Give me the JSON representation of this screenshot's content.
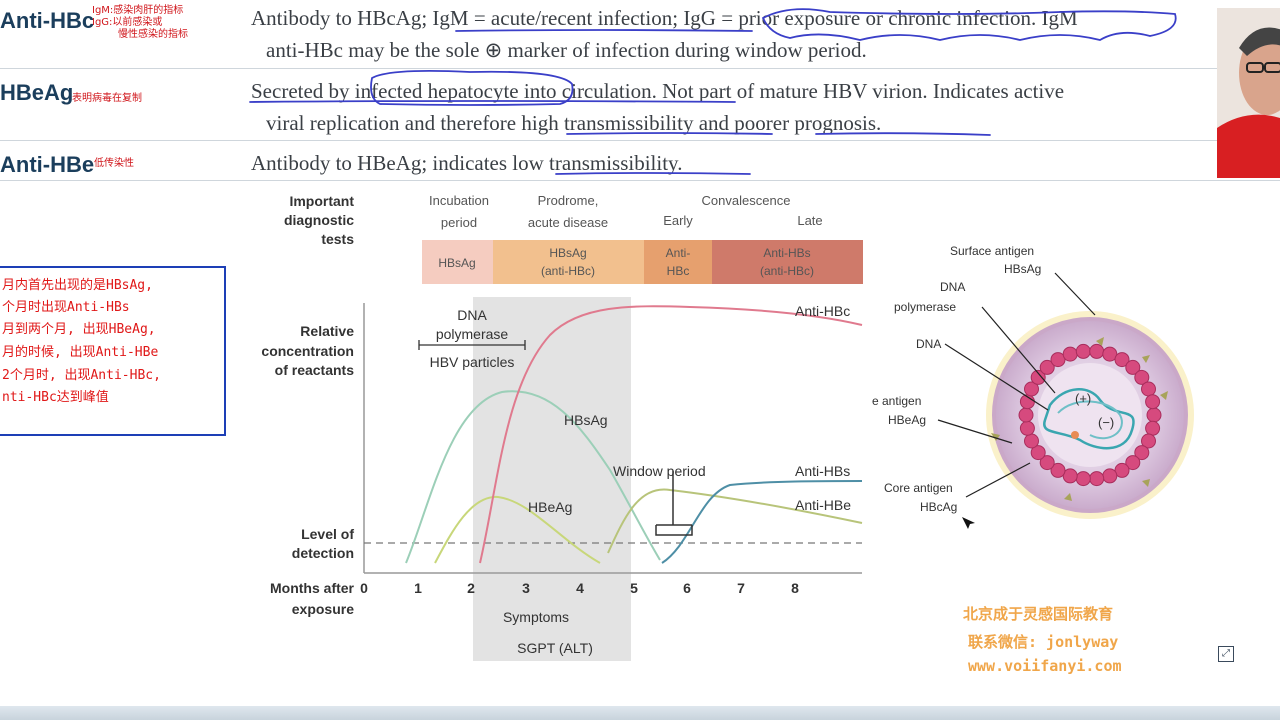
{
  "rows": [
    {
      "term": "Anti-HBc",
      "note_cn": [
        "IgM:感染肉肝的指标",
        "IgG:以前感染或",
        "慢性感染的指标"
      ],
      "lines": [
        "Antibody to HBcAg; IgM = acute/recent infection; IgG = prior exposure or chronic infection. IgM",
        "anti-HBc may be the sole ⊕ marker of infection during window period."
      ]
    },
    {
      "term": "HBeAg",
      "note_cn": [
        "表明病毒在复制"
      ],
      "lines": [
        "Secreted by infected hepatocyte into circulation. Not part of mature HBV virion. Indicates active",
        "viral replication and therefore high transmissibility and poorer prognosis."
      ]
    },
    {
      "term": "Anti-HBe",
      "note_cn": [
        "低传染性"
      ],
      "lines": [
        "Antibody to HBeAg; indicates low transmissibility."
      ]
    }
  ],
  "side_note": {
    "lines": [
      "月内首先出现的是HBsAg,",
      "个月时出现Anti-HBs",
      "月到两个月, 出现HBeAg,",
      "月的时候, 出现Anti-HBe",
      "2个月时, 出现Anti-HBc,",
      "nti-HBc达到峰值"
    ]
  },
  "figure": {
    "left_labels": {
      "important_tests": [
        "Important",
        "diagnostic",
        "tests"
      ],
      "relative": [
        "Relative",
        "concentration",
        "of reactants"
      ],
      "level": [
        "Level of",
        "detection"
      ],
      "months": [
        "Months after",
        "exposure"
      ]
    },
    "phases": {
      "incubation": [
        "Incubation",
        "period"
      ],
      "prodrome": [
        "Prodrome,",
        "acute disease"
      ],
      "convalescence": "Convalescence",
      "early": "Early",
      "late": "Late"
    },
    "test_boxes": [
      {
        "lines": [
          "HBsAg"
        ],
        "color": "#f5ccc0"
      },
      {
        "lines": [
          "HBsAg",
          "(anti-HBc)"
        ],
        "color": "#f2c08e"
      },
      {
        "lines": [
          "Anti-",
          "HBc"
        ],
        "color": "#e6a06e"
      },
      {
        "lines": [
          "Anti-HBs",
          "(anti-HBc)"
        ],
        "color": "#cf7a6a"
      }
    ],
    "dna_label": [
      "DNA",
      "polymerase"
    ],
    "hbv_particles": "HBV particles",
    "curve_labels": {
      "anti_hbc": "Anti-HBc",
      "hbsag": "HBsAg",
      "hbeag": "HBeAg",
      "window": "Window period",
      "anti_hbs": "Anti-HBs",
      "anti_hbe": "Anti-HBe"
    },
    "x_ticks": [
      "0",
      "1",
      "2",
      "3",
      "4",
      "5",
      "6",
      "7",
      "8"
    ],
    "symptoms": "Symptoms",
    "sgpt": "SGPT (ALT)",
    "curve_colors": {
      "anti_hbc": "#e07a8e",
      "hbsag": "#9ccfb8",
      "hbeag": "#c8d77a",
      "anti_hbs": "#4e8fa6",
      "anti_hbe": "#b8c47a"
    }
  },
  "virion": {
    "surface": [
      "Surface antigen",
      "HBsAg"
    ],
    "dna_polymerase": [
      "DNA",
      "polymerase"
    ],
    "dna": "DNA",
    "e_antigen": [
      "e antigen",
      "HBeAg"
    ],
    "core_antigen": [
      "Core antigen",
      "HBcAg"
    ],
    "plus": "(+)",
    "minus": "(−)"
  },
  "watermark": {
    "line1": "北京成于灵感国际教育",
    "line2": "联系微信: jonlyway",
    "line3": "www.voiifanyi.com"
  },
  "corner_icon": "expand-icon"
}
